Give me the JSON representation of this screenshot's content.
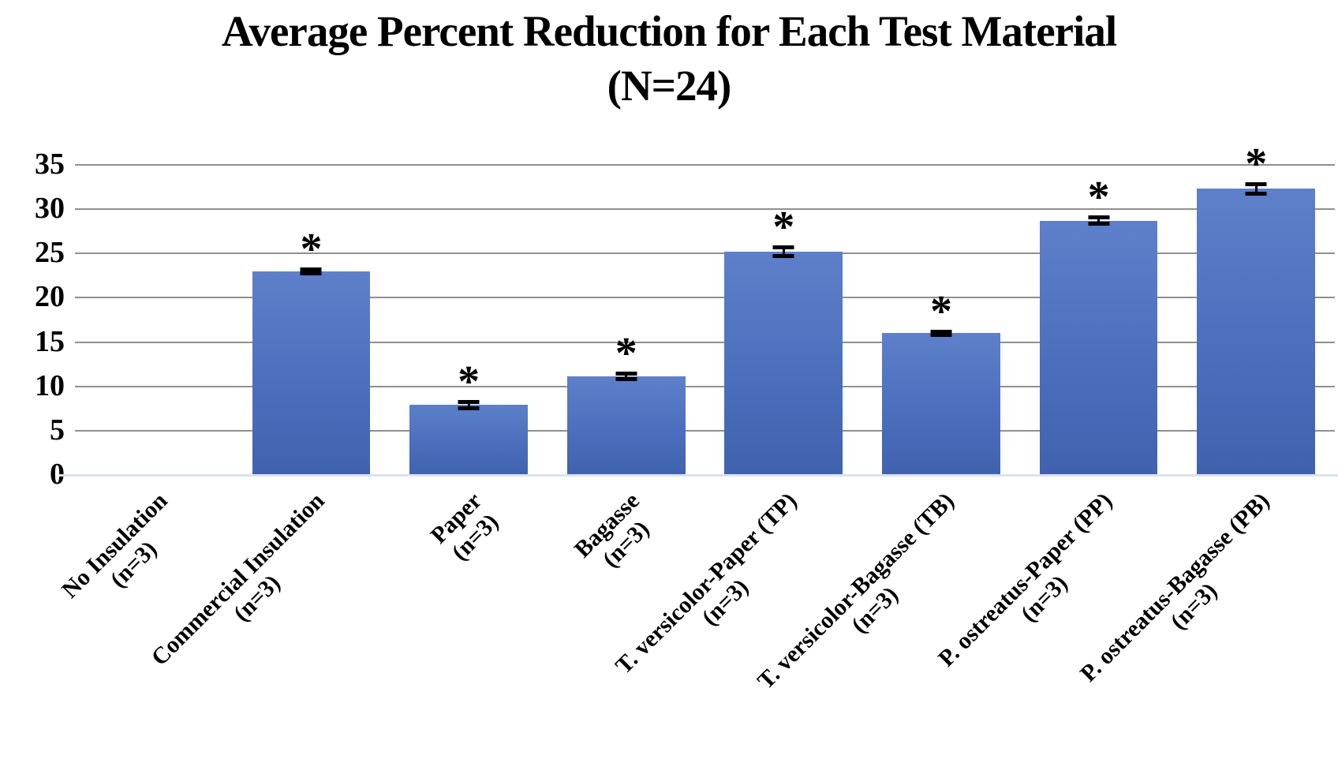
{
  "chart_data": {
    "type": "bar",
    "title_line1": "Average Percent Reduction for Each Test Material",
    "title_line2": "(N=24)",
    "xlabel": "",
    "ylabel": "",
    "ylim": [
      0,
      35
    ],
    "ytick_interval": 5,
    "yticks": [
      35,
      30,
      25,
      20,
      15,
      10,
      5,
      0
    ],
    "grid": true,
    "legend": "none",
    "bar_color_top": "#5e80ca",
    "bar_color_bottom": "#4062ae",
    "gridline_color": "#8f8f8f",
    "baseline_color": "#dbe3f0",
    "significance_marker": "*",
    "categories": [
      {
        "label": "No Insulation",
        "sub": "(n=3)",
        "value": 0,
        "error": 0,
        "significant": false
      },
      {
        "label": "Commercial Insulation",
        "sub": "(n=3)",
        "value": 23.0,
        "error": 0.25,
        "significant": true
      },
      {
        "label": "Paper",
        "sub": "(n=3)",
        "value": 7.9,
        "error": 0.4,
        "significant": true
      },
      {
        "label": "Bagasse",
        "sub": "(n=3)",
        "value": 11.1,
        "error": 0.35,
        "significant": true
      },
      {
        "label": "T. versicolor-Paper (TP)",
        "sub": "(n=3)",
        "value": 25.2,
        "error": 0.55,
        "significant": true
      },
      {
        "label": "T. versicolor-Bagasse (TB)",
        "sub": "(n=3)",
        "value": 16.0,
        "error": 0.2,
        "significant": true
      },
      {
        "label": "P. ostreatus-Paper (PP)",
        "sub": "(n=3)",
        "value": 28.7,
        "error": 0.4,
        "significant": true
      },
      {
        "label": "P. ostreatus-Bagasse (PB)",
        "sub": "(n=3)",
        "value": 32.3,
        "error": 0.6,
        "significant": true
      }
    ]
  }
}
